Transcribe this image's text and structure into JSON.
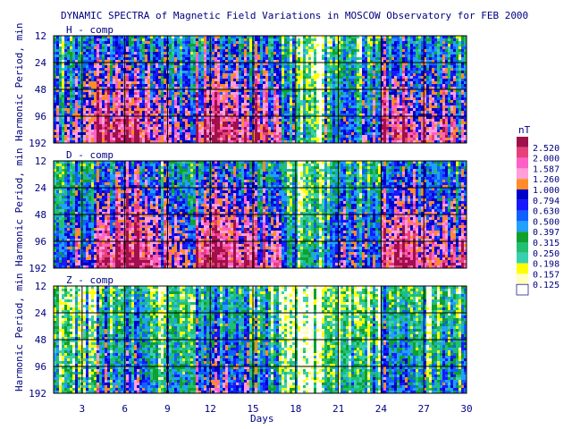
{
  "chart_data": {
    "type": "heatmap",
    "title": "DYNAMIC SPECTRA of Magnetic Field Variations in MOSCOW Observatory for FEB 2000",
    "xlabel": "Days",
    "ylabel": "Harmonic Period, min",
    "x_range": [
      1,
      30
    ],
    "x_ticks": [
      "3",
      "6",
      "9",
      "12",
      "15",
      "18",
      "21",
      "24",
      "27",
      "30"
    ],
    "y_ticks": [
      "12",
      "24",
      "48",
      "96",
      "192"
    ],
    "y_scale": "log2",
    "grid": true,
    "panels": [
      {
        "label": "H - comp",
        "intensity": [
          0.55,
          0.65,
          0.7,
          0.95,
          0.85,
          0.9,
          0.8,
          0.65,
          0.7,
          0.6,
          0.85,
          0.95,
          0.9,
          0.8,
          0.85,
          0.75,
          0.45,
          0.3,
          0.2,
          0.45,
          0.55,
          0.5,
          0.55,
          0.8,
          0.9,
          0.75,
          0.7,
          0.75,
          0.65,
          0.6
        ]
      },
      {
        "label": "D - comp",
        "intensity": [
          0.5,
          0.6,
          0.65,
          0.95,
          0.9,
          0.95,
          0.85,
          0.7,
          0.75,
          0.65,
          0.9,
          0.95,
          0.9,
          0.85,
          0.8,
          0.75,
          0.5,
          0.3,
          0.25,
          0.5,
          0.6,
          0.55,
          0.6,
          0.85,
          0.95,
          0.8,
          0.75,
          0.7,
          0.7,
          0.6
        ]
      },
      {
        "label": "Z - comp",
        "intensity": [
          0.25,
          0.3,
          0.3,
          0.55,
          0.45,
          0.5,
          0.45,
          0.35,
          0.4,
          0.35,
          0.55,
          0.6,
          0.55,
          0.5,
          0.5,
          0.4,
          0.2,
          0.15,
          0.1,
          0.25,
          0.3,
          0.3,
          0.35,
          0.5,
          0.5,
          0.4,
          0.35,
          0.4,
          0.35,
          0.3
        ]
      }
    ],
    "colorbar": {
      "unit": "nT",
      "labels": [
        "2.520",
        "2.000",
        "1.587",
        "1.260",
        "1.000",
        "0.794",
        "0.630",
        "0.500",
        "0.397",
        "0.315",
        "0.250",
        "0.198",
        "0.157",
        "0.125"
      ],
      "colors": [
        "#a0104a",
        "#e6407a",
        "#ff60c8",
        "#ff9ed8",
        "#ff8c28",
        "#0000c8",
        "#1818ff",
        "#1060ff",
        "#20a0ff",
        "#10a030",
        "#20c070",
        "#38d0b0",
        "#ffff00",
        "#ffffc0",
        "#ffffff"
      ]
    }
  }
}
